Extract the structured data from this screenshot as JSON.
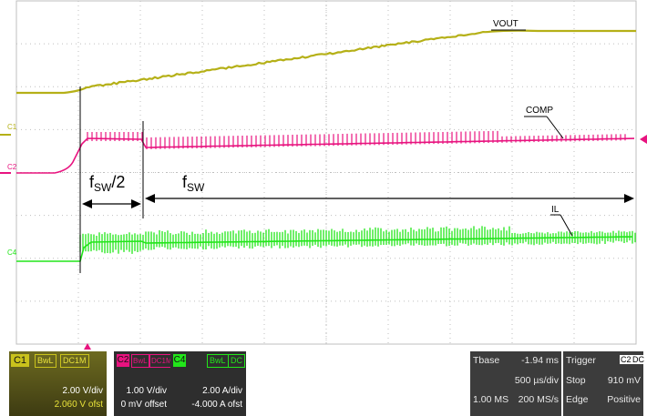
{
  "waveforms": {
    "vout_label": "VOUT",
    "comp_label": "COMP",
    "il_label": "IL",
    "fsw_half": "fSW/2",
    "fsw": "fSW",
    "c1_marker": "C1",
    "c2_marker": "C2",
    "c4_marker": "C4",
    "colors": {
      "c1": "#b5b017",
      "c2": "#e8137f",
      "c4": "#22e61a",
      "grid": "#bfbfbf"
    }
  },
  "channels": [
    {
      "tag": "C1",
      "bw": "BwL",
      "coupling": "DC1M",
      "scale": "2.00 V/div",
      "offset": "2.060 V ofst"
    },
    {
      "tag": "C2",
      "bw": "BwL",
      "coupling": "DC1M",
      "scale": "1.00 V/div",
      "offset": "0 mV offset"
    },
    {
      "tag": "C4",
      "bw": "BwL",
      "coupling": "DC",
      "scale": "2.00 A/div",
      "offset": "-4.000 A ofst"
    }
  ],
  "timebase": {
    "label": "Tbase",
    "delay": "-1.94 ms",
    "per_div": "500 µs/div",
    "samples": "1.00 MS",
    "rate": "200 MS/s"
  },
  "trigger": {
    "label": "Trigger",
    "source": "C2",
    "coupling": "DC",
    "mode": "Stop",
    "level": "910 mV",
    "type": "Edge",
    "slope": "Positive"
  }
}
